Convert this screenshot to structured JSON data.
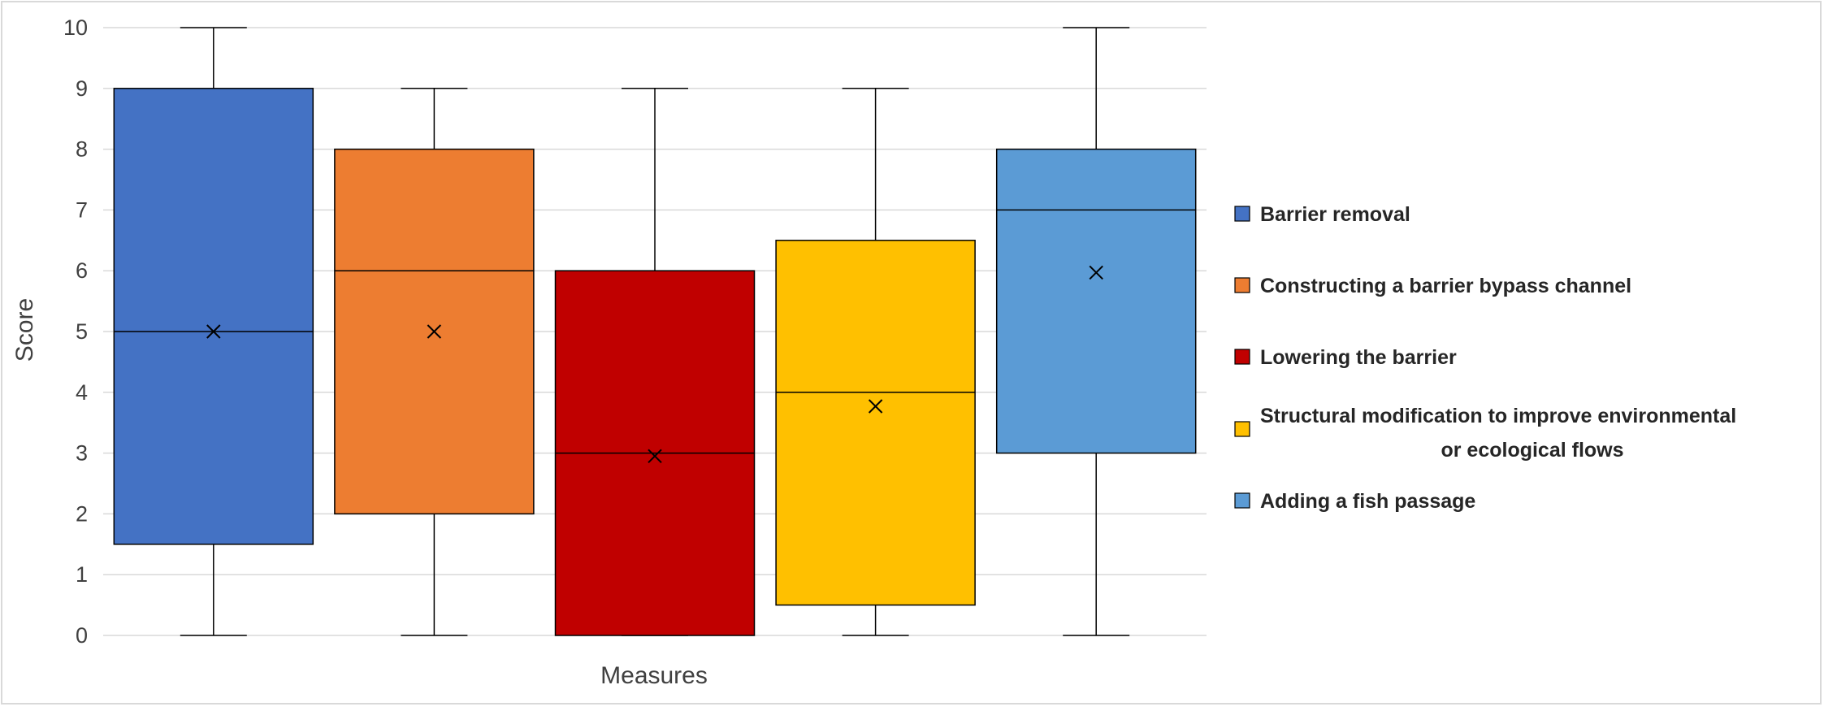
{
  "chart_data": {
    "type": "boxplot",
    "title": "",
    "xlabel": "Measures",
    "ylabel": "Score",
    "ylim": [
      0,
      10
    ],
    "yticks": [
      0,
      1,
      2,
      3,
      4,
      5,
      6,
      7,
      8,
      9,
      10
    ],
    "grid": true,
    "legend_position": "right",
    "series": [
      {
        "name": "Barrier removal",
        "color": "#4472c4",
        "min": 0,
        "q1": 1.5,
        "median": 5,
        "q3": 9,
        "max": 10,
        "mean": 5
      },
      {
        "name": "Constructing a barrier bypass channel",
        "color": "#ed7d31",
        "min": 0,
        "q1": 2,
        "median": 6,
        "q3": 8,
        "max": 9,
        "mean": 5
      },
      {
        "name": "Lowering the barrier",
        "color": "#c00000",
        "min": 0,
        "q1": 0,
        "median": 3,
        "q3": 6,
        "max": 9,
        "mean": 2.95
      },
      {
        "name": "Structural modification to improve environmental or ecological flows",
        "legend_lines": [
          "Structural modification to improve environmental",
          "or ecological flows"
        ],
        "color": "#ffc000",
        "min": 0,
        "q1": 0.5,
        "median": 4,
        "q3": 6.5,
        "max": 9,
        "mean": 3.77
      },
      {
        "name": "Adding a fish passage",
        "color": "#5b9bd5",
        "min": 0,
        "q1": 3,
        "median": 7,
        "q3": 8,
        "max": 10,
        "mean": 5.97
      }
    ]
  }
}
